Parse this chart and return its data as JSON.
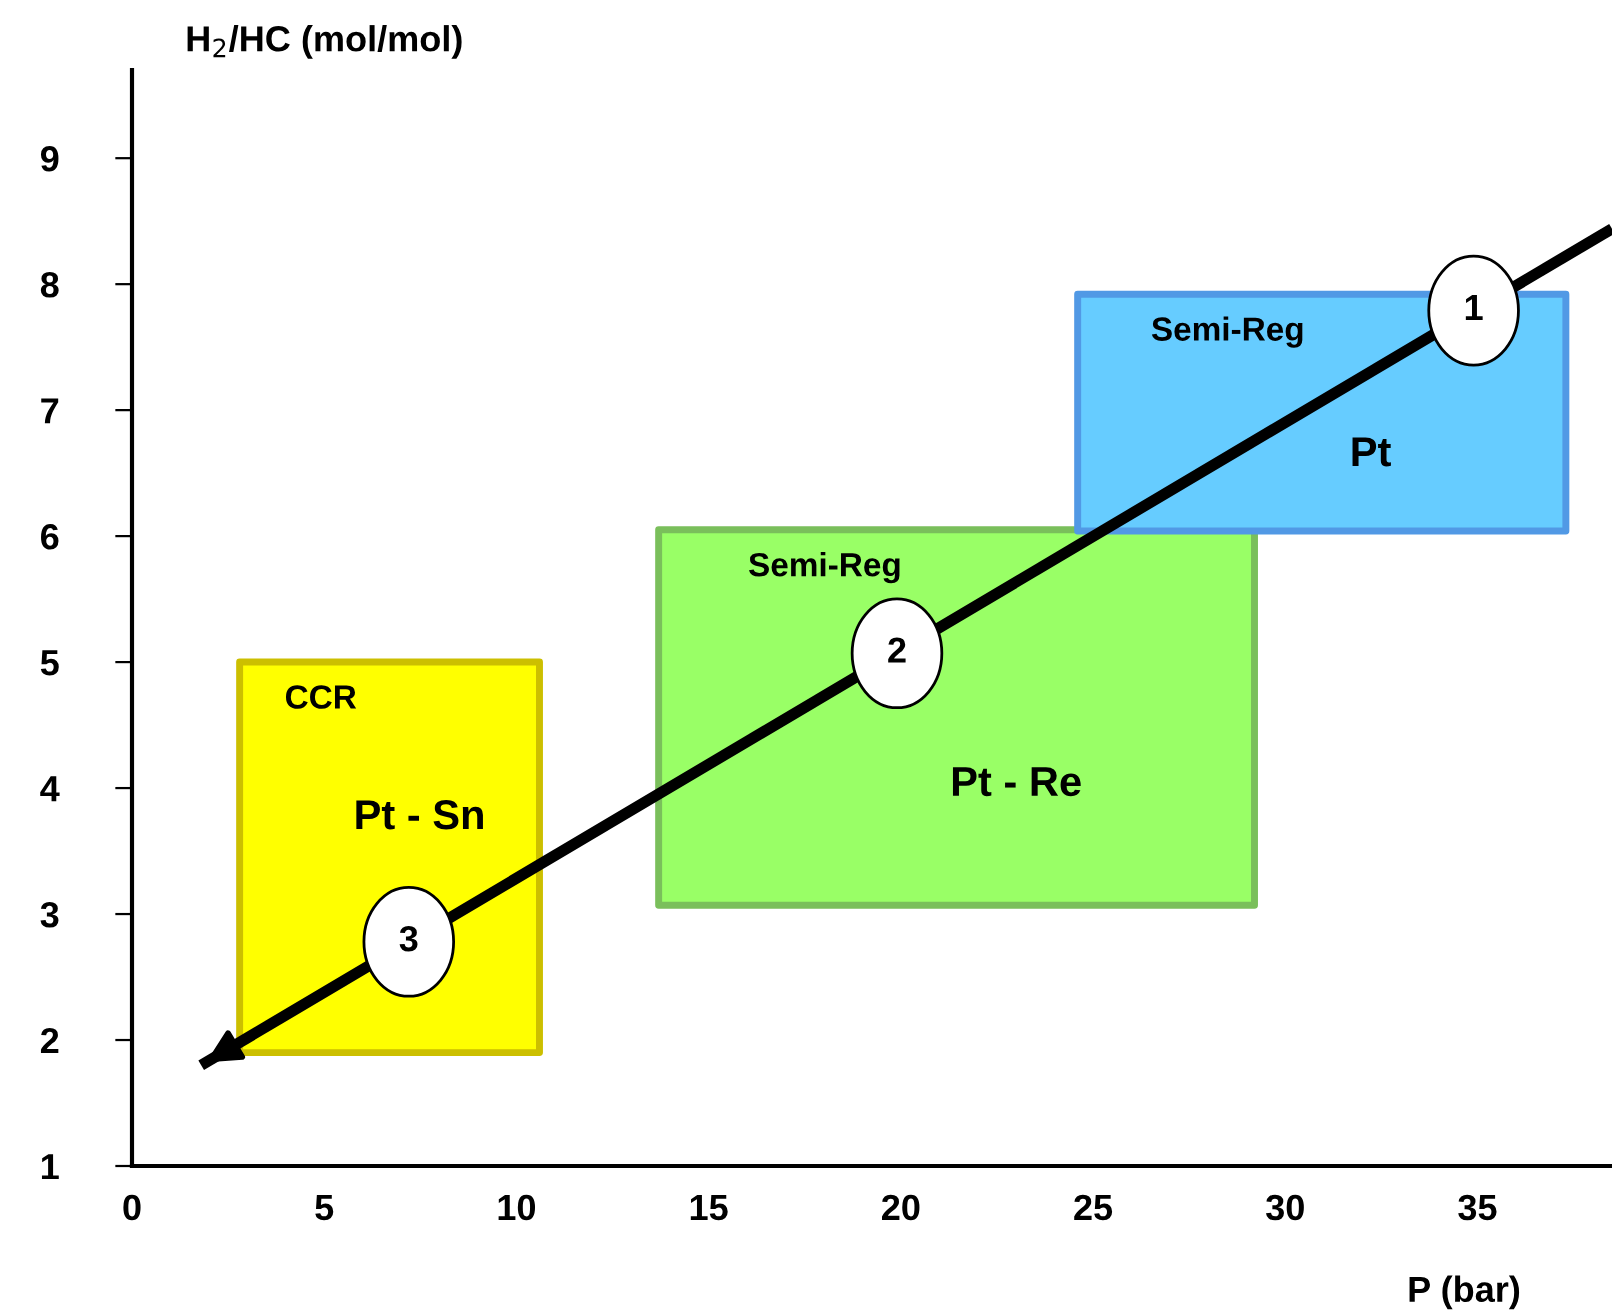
{
  "chart_data": {
    "type": "area",
    "xlabel": "P (bar)",
    "ylabel": "H$_{2}$/HC (mol/mol)",
    "xlim": [
      0,
      38.5
    ],
    "ylim": [
      1,
      9.7
    ],
    "xticks": [
      0,
      5,
      10,
      15,
      20,
      25,
      30,
      35
    ],
    "yticks": [
      1,
      2,
      3,
      4,
      5,
      6,
      7,
      8,
      9
    ],
    "grid": false,
    "legend": false,
    "series": [
      {
        "name": "CCR",
        "x": [
          2.8,
          10.6,
          10.6,
          2.8,
          2.8
        ],
        "values": [
          5.0,
          5.0,
          1.9,
          1.9,
          5.0
        ],
        "color": "#ffff00"
      },
      {
        "name": "Semi-Reg",
        "x": [
          13.7,
          29.2,
          29.2,
          13.7,
          13.7
        ],
        "values": [
          6.05,
          6.05,
          3.07,
          3.07,
          6.05
        ],
        "color": "#99ff66"
      },
      {
        "name": "Semi-Reg",
        "x": [
          24.6,
          37.3,
          37.3,
          24.6,
          24.6
        ],
        "values": [
          7.92,
          7.92,
          6.04,
          6.04,
          7.92
        ],
        "color": "#66ccff"
      },
      {
        "type": "line",
        "x": [
          38.5,
          1.8
        ],
        "values": [
          8.44,
          1.8
        ],
        "color": "#000000"
      }
    ],
    "annotations": [
      "Pt - Sn",
      "Pt - Re",
      "Pt",
      {
        "text": "1",
        "x": 34.9,
        "y": 7.79
      },
      {
        "text": "2",
        "x": 19.9,
        "y": 5.07
      },
      {
        "text": "3",
        "x": 7.2,
        "y": 2.78
      }
    ]
  }
}
